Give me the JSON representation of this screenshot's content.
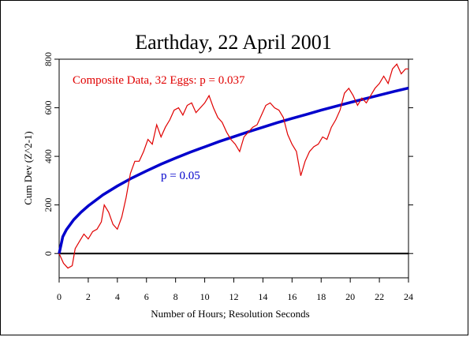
{
  "chart_data": {
    "type": "line",
    "title": "Earthday, 22 April 2001",
    "xlabel": "Number of Hours; Resolution Seconds",
    "ylabel": "Cum Dev (Z^2-1)",
    "xlim": [
      0,
      24
    ],
    "ylim": [
      -100,
      800
    ],
    "xticks": [
      0,
      2,
      4,
      6,
      8,
      10,
      12,
      14,
      16,
      18,
      20,
      22,
      24
    ],
    "yticks": [
      0,
      200,
      400,
      600,
      800
    ],
    "grid": false,
    "annotations": [
      {
        "text": "Composite Data, 32 Eggs: p = 0.037",
        "color": "#e00000"
      },
      {
        "text": "p = 0.05",
        "color": "#0000cc"
      }
    ],
    "series": [
      {
        "color": "#e00000",
        "x": [
          0,
          0.3,
          0.6,
          0.9,
          1.1,
          1.4,
          1.7,
          2.0,
          2.3,
          2.6,
          2.9,
          3.1,
          3.4,
          3.7,
          4.0,
          4.3,
          4.6,
          4.9,
          5.2,
          5.5,
          5.8,
          6.1,
          6.4,
          6.7,
          7.0,
          7.3,
          7.6,
          7.9,
          8.2,
          8.5,
          8.8,
          9.1,
          9.4,
          9.7,
          10.0,
          10.3,
          10.6,
          10.9,
          11.2,
          11.5,
          11.8,
          12.1,
          12.4,
          12.7,
          13.0,
          13.3,
          13.6,
          13.9,
          14.2,
          14.5,
          14.8,
          15.1,
          15.4,
          15.7,
          16.0,
          16.3,
          16.6,
          16.9,
          17.2,
          17.5,
          17.8,
          18.1,
          18.4,
          18.7,
          19.0,
          19.3,
          19.6,
          19.9,
          20.2,
          20.5,
          20.8,
          21.1,
          21.4,
          21.7,
          22.0,
          22.3,
          22.6,
          22.9,
          23.2,
          23.5,
          23.8,
          24.0
        ],
        "values": [
          0,
          -40,
          -60,
          -50,
          20,
          50,
          80,
          60,
          90,
          100,
          130,
          200,
          170,
          120,
          100,
          150,
          230,
          330,
          380,
          380,
          420,
          470,
          450,
          530,
          480,
          520,
          550,
          590,
          600,
          570,
          610,
          620,
          580,
          600,
          620,
          650,
          600,
          560,
          540,
          500,
          470,
          450,
          420,
          480,
          500,
          520,
          530,
          570,
          610,
          620,
          600,
          590,
          560,
          490,
          450,
          420,
          320,
          380,
          420,
          440,
          450,
          480,
          470,
          520,
          550,
          590,
          660,
          680,
          650,
          610,
          640,
          620,
          650,
          680,
          700,
          730,
          700,
          760,
          780,
          740,
          760,
          760
        ]
      },
      {
        "color": "#0000cc",
        "x": [
          0,
          0.25,
          0.5,
          1,
          1.5,
          2,
          3,
          4,
          5,
          6,
          7,
          8,
          9,
          10,
          11,
          12,
          13,
          14,
          15,
          16,
          17,
          18,
          19,
          20,
          21,
          22,
          23,
          24
        ],
        "values": [
          0,
          69,
          98,
          139,
          170,
          196,
          241,
          278,
          311,
          340,
          368,
          393,
          417,
          439,
          461,
          481,
          501,
          520,
          539,
          556,
          573,
          590,
          606,
          622,
          637,
          652,
          667,
          681
        ]
      }
    ]
  }
}
